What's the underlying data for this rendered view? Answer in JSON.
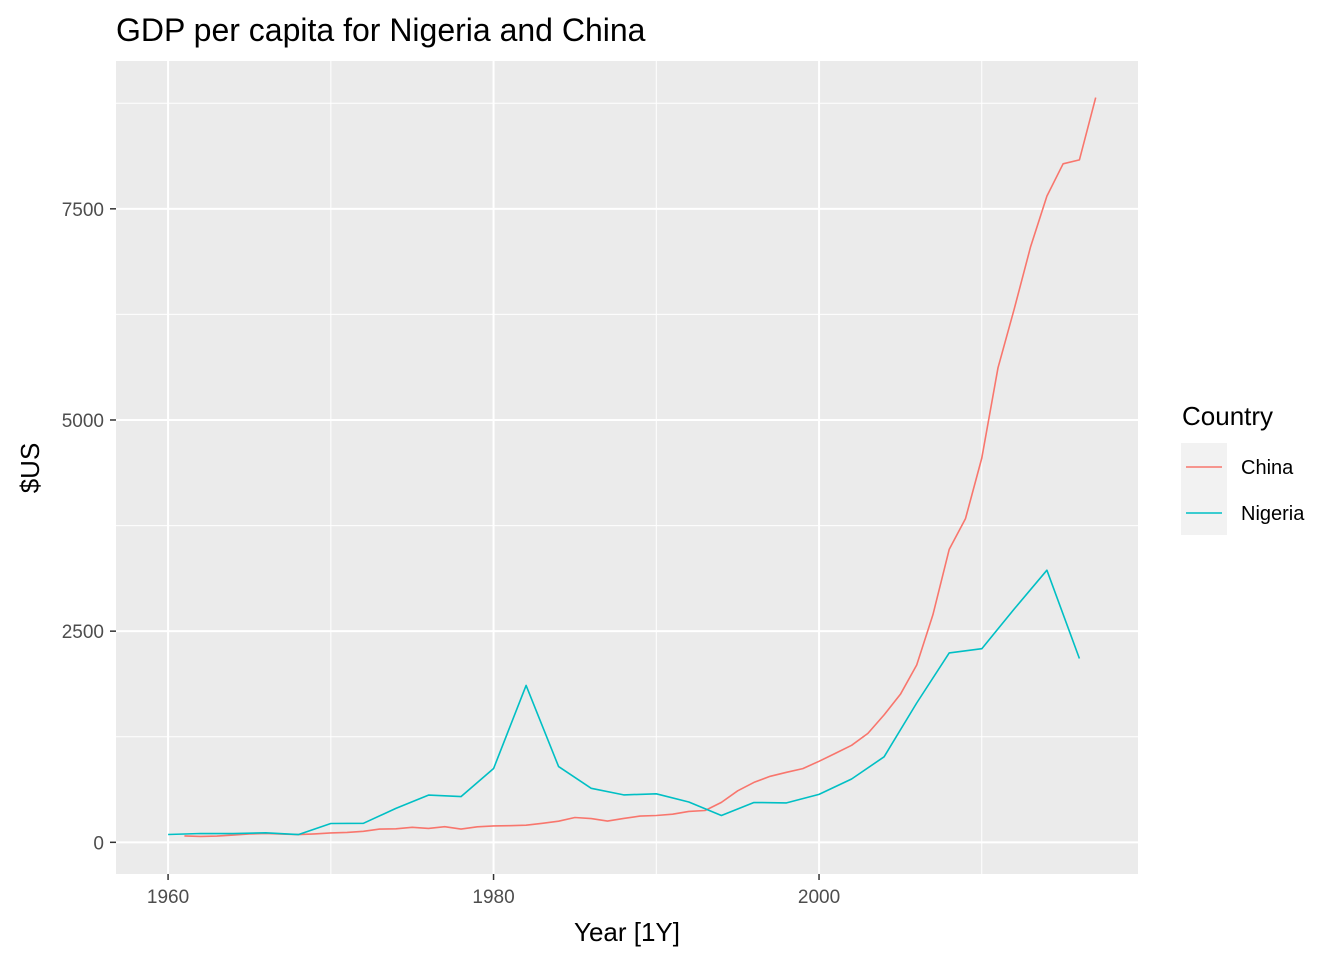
{
  "chart_data": {
    "type": "line",
    "title": "GDP per capita for Nigeria and China",
    "xlabel": "Year [1Y]",
    "ylabel": "$US",
    "xlim": [
      1956.8,
      2019.6
    ],
    "ylim": [
      -375,
      9250
    ],
    "x_ticks": [
      1960,
      1980,
      2000
    ],
    "x_minor_ticks": [
      1970,
      1990,
      2010
    ],
    "y_ticks": [
      0,
      2500,
      5000,
      7500
    ],
    "y_minor_ticks": [
      1250,
      3750,
      6250,
      8750
    ],
    "grid": true,
    "legend": {
      "title": "Country",
      "position": "right"
    },
    "series": [
      {
        "name": "China",
        "color": "#f8766d",
        "x": [
          1961,
          1962,
          1963,
          1964,
          1965,
          1966,
          1967,
          1968,
          1969,
          1970,
          1971,
          1972,
          1973,
          1974,
          1975,
          1976,
          1977,
          1978,
          1979,
          1980,
          1981,
          1982,
          1983,
          1984,
          1985,
          1986,
          1987,
          1988,
          1989,
          1990,
          1991,
          1992,
          1993,
          1994,
          1995,
          1996,
          1997,
          1998,
          1999,
          2000,
          2001,
          2002,
          2003,
          2004,
          2005,
          2006,
          2007,
          2008,
          2009,
          2010,
          2011,
          2012,
          2013,
          2014,
          2015,
          2016,
          2017
        ],
        "y": [
          76,
          70,
          74,
          85,
          98,
          104,
          97,
          91,
          100,
          112,
          118,
          131,
          157,
          160,
          178,
          165,
          185,
          156,
          184,
          195,
          197,
          203,
          225,
          250,
          294,
          281,
          251,
          283,
          311,
          318,
          333,
          366,
          377,
          473,
          610,
          709,
          782,
          829,
          873,
          959,
          1053,
          1149,
          1289,
          1509,
          1753,
          2099,
          2694,
          3468,
          3832,
          4550,
          5618,
          6317,
          7051,
          7651,
          8033,
          8079,
          8817
        ]
      },
      {
        "name": "Nigeria",
        "color": "#00bfc4",
        "x": [
          1960,
          1962,
          1964,
          1966,
          1968,
          1970,
          1972,
          1974,
          1976,
          1978,
          1980,
          1982,
          1984,
          1986,
          1988,
          1990,
          1992,
          1994,
          1996,
          1998,
          2000,
          2002,
          2004,
          2006,
          2008,
          2010,
          2012,
          2014,
          2016
        ],
        "y": [
          93,
          105,
          103,
          113,
          92,
          223,
          225,
          402,
          559,
          541,
          874,
          1858,
          896,
          640,
          561,
          574,
          477,
          318,
          471,
          467,
          567,
          750,
          1013,
          1650,
          2242,
          2292,
          2763,
          3222,
          2176
        ]
      }
    ]
  }
}
